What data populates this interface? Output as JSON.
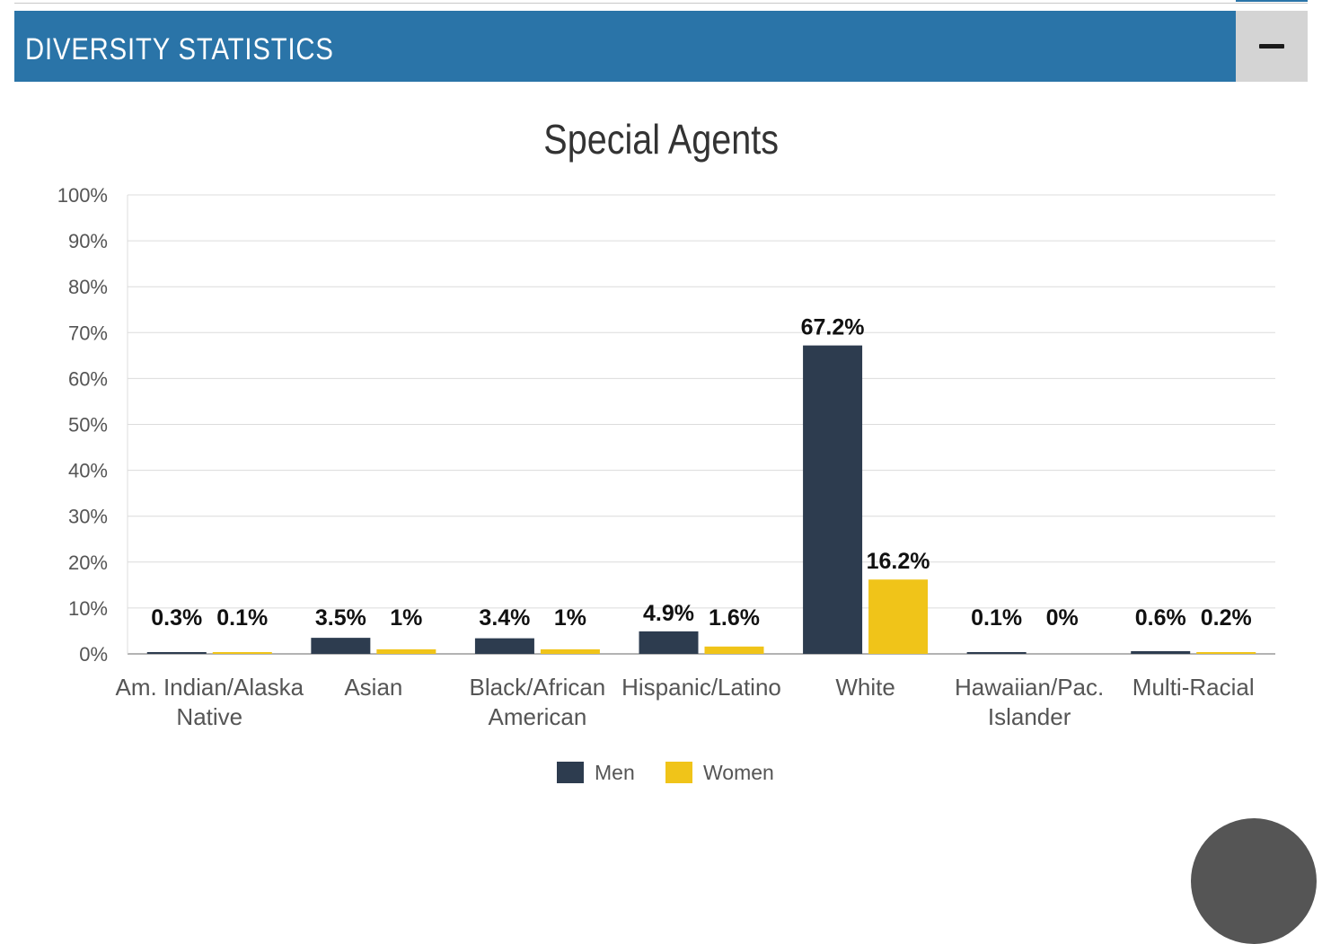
{
  "header": {
    "title": "DIVERSITY STATISTICS",
    "collapse_icon": "minus-icon"
  },
  "colors": {
    "header_bg": "#2a74a8",
    "men": "#2d3c4f",
    "women": "#f0c419",
    "grid": "#dcdcdc"
  },
  "chart_data": {
    "type": "bar",
    "title": "Special Agents",
    "categories": [
      [
        "Am. Indian/Alaska",
        "Native"
      ],
      [
        "Asian"
      ],
      [
        "Black/African",
        "American"
      ],
      [
        "Hispanic/Latino"
      ],
      [
        "White"
      ],
      [
        "Hawaiian/Pac.",
        "Islander"
      ],
      [
        "Multi-Racial"
      ]
    ],
    "series": [
      {
        "name": "Men",
        "values": [
          0.3,
          3.5,
          3.4,
          4.9,
          67.2,
          0.1,
          0.6
        ],
        "labels": [
          "0.3%",
          "3.5%",
          "3.4%",
          "4.9%",
          "67.2%",
          "0.1%",
          "0.6%"
        ]
      },
      {
        "name": "Women",
        "values": [
          0.1,
          1,
          1,
          1.6,
          16.2,
          0,
          0.2
        ],
        "labels": [
          "0.1%",
          "1%",
          "1%",
          "1.6%",
          "16.2%",
          "0%",
          "0.2%"
        ]
      }
    ],
    "ylim": [
      0,
      100
    ],
    "yticks": [
      "0%",
      "10%",
      "20%",
      "30%",
      "40%",
      "50%",
      "60%",
      "70%",
      "80%",
      "90%",
      "100%"
    ],
    "grid": true,
    "legend_position": "bottom-center"
  }
}
